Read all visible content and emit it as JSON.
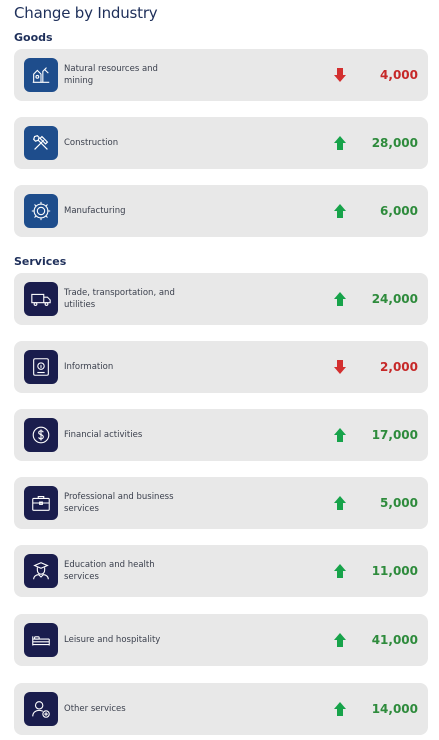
{
  "title": "Change by Industry",
  "colors": {
    "up": "#17a34a",
    "down": "#d32f2f",
    "goods_icon_bg": "#1e4d8c",
    "services_icon_bg": "#1a1d4d"
  },
  "sections": [
    {
      "label": "Goods",
      "items": [
        {
          "label": "Natural resources and mining",
          "value": "4,000",
          "direction": "down",
          "icon": "mining-icon"
        },
        {
          "label": "Construction",
          "value": "28,000",
          "direction": "up",
          "icon": "tools-icon"
        },
        {
          "label": "Manufacturing",
          "value": "6,000",
          "direction": "up",
          "icon": "gear-icon"
        }
      ]
    },
    {
      "label": "Services",
      "items": [
        {
          "label": "Trade, transportation, and utilities",
          "value": "24,000",
          "direction": "up",
          "icon": "truck-icon"
        },
        {
          "label": "Information",
          "value": "2,000",
          "direction": "down",
          "icon": "info-icon"
        },
        {
          "label": "Financial activities",
          "value": "17,000",
          "direction": "up",
          "icon": "dollar-icon"
        },
        {
          "label": "Professional and business services",
          "value": "5,000",
          "direction": "up",
          "icon": "briefcase-icon"
        },
        {
          "label": "Education and health services",
          "value": "11,000",
          "direction": "up",
          "icon": "graduate-icon"
        },
        {
          "label": "Leisure and hospitality",
          "value": "41,000",
          "direction": "up",
          "icon": "bed-icon"
        },
        {
          "label": "Other services",
          "value": "14,000",
          "direction": "up",
          "icon": "person-plus-icon"
        }
      ]
    }
  ]
}
